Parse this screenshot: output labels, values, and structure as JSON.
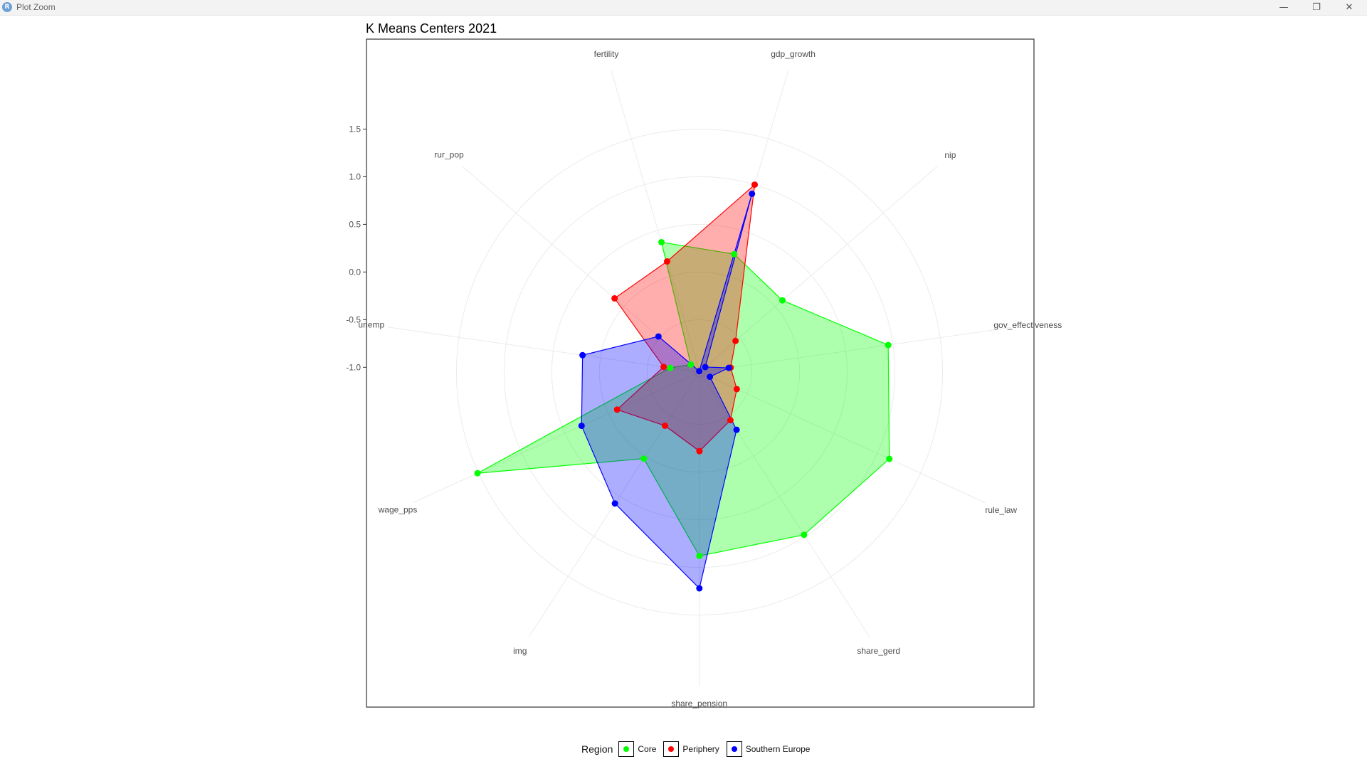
{
  "window": {
    "title": "Plot Zoom",
    "icon": "R",
    "buttons": {
      "minimize": "—",
      "maximize": "❐",
      "close": "✕"
    }
  },
  "chart_data": {
    "type": "radar",
    "title": "K Means Centers 2021",
    "axes": [
      "gdp_growth",
      "nip",
      "gov_effectiveness",
      "rule_law",
      "share_gerd",
      "share_pension",
      "img",
      "wage_pps",
      "unemp",
      "rur_pop",
      "fertility"
    ],
    "radial_ticks": [
      1.5,
      1.0,
      0.5,
      0.0,
      -0.5,
      -1.0
    ],
    "radial_tick_labels": [
      "1.5",
      "1.0",
      "0.5",
      "0.0",
      "-0.5",
      "-1.0"
    ],
    "rlim": [
      -1.05,
      2.25
    ],
    "legend": {
      "title": "Region",
      "position": "bottom"
    },
    "series": [
      {
        "name": "Core",
        "color": "#00ff00",
        "values": [
          0.24,
          0.1,
          0.95,
          1.14,
          0.98,
          0.88,
          0.03,
          1.51,
          -0.74,
          -0.93,
          0.37
        ]
      },
      {
        "name": "Periphery",
        "color": "#ff0000",
        "values": [
          1.0,
          -0.55,
          -0.72,
          -0.62,
          -0.45,
          -0.22,
          -0.38,
          -0.1,
          -0.67,
          0.13,
          0.16
        ]
      },
      {
        "name": "Southern Europe",
        "color": "#0000ff",
        "values": [
          0.9,
          -0.97,
          -0.74,
          -0.93,
          -0.33,
          1.22,
          0.59,
          0.31,
          0.19,
          -0.48,
          -1.04
        ]
      }
    ]
  }
}
